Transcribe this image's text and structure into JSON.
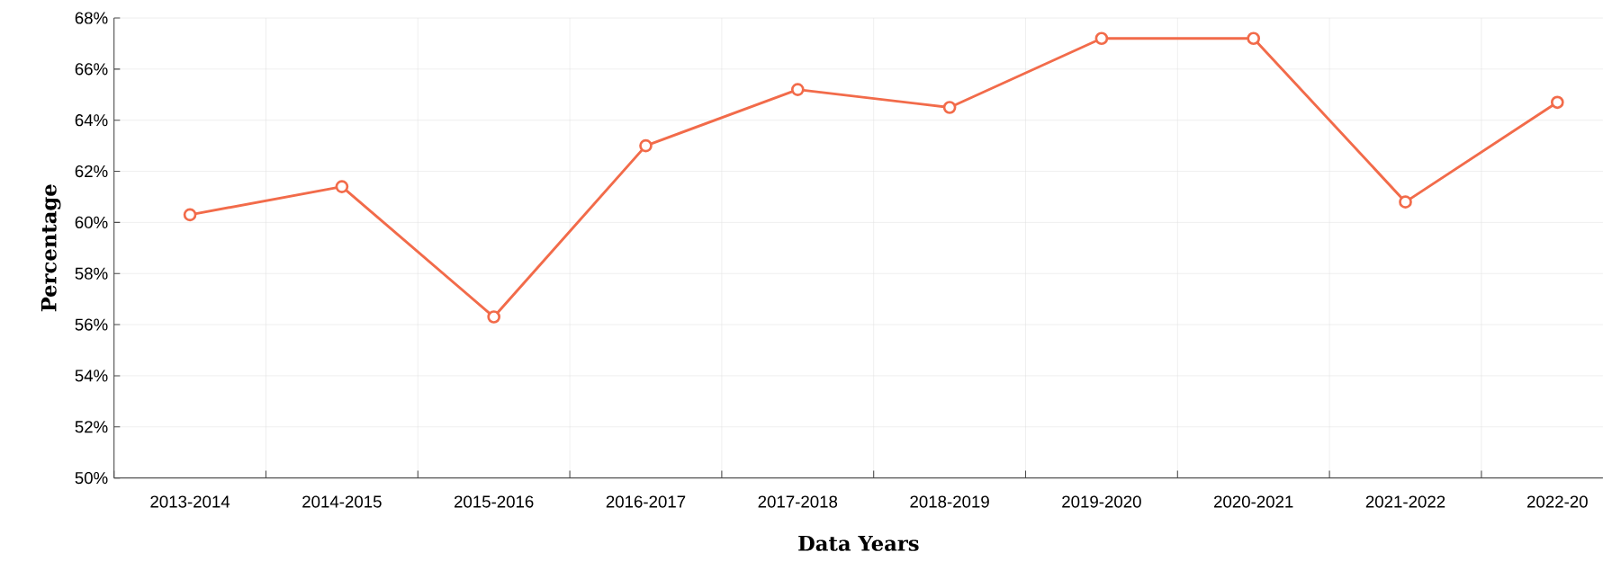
{
  "chart_data": {
    "type": "line",
    "xlabel": "Data Years",
    "ylabel": "Percentage",
    "categories": [
      "2013-2014",
      "2014-2015",
      "2015-2016",
      "2016-2017",
      "2017-2018",
      "2018-2019",
      "2019-2020",
      "2020-2021",
      "2021-2022",
      "2022-20"
    ],
    "series": [
      {
        "color": "#f26b4a",
        "values": [
          60.3,
          61.4,
          56.3,
          63.0,
          65.2,
          64.5,
          67.2,
          67.2,
          60.8,
          64.7
        ]
      }
    ],
    "ylim": [
      50,
      68
    ],
    "yticks": [
      {
        "value": 50,
        "label": "50%"
      },
      {
        "value": 52,
        "label": "52%"
      },
      {
        "value": 54,
        "label": "54%"
      },
      {
        "value": 56,
        "label": "56%"
      },
      {
        "value": 58,
        "label": "58%"
      },
      {
        "value": 60,
        "label": "60%"
      },
      {
        "value": 62,
        "label": "62%"
      },
      {
        "value": 64,
        "label": "64%"
      },
      {
        "value": 66,
        "label": "66%"
      },
      {
        "value": 68,
        "label": "68%"
      }
    ],
    "grid": true,
    "marker": "circle",
    "line_style": "solid"
  }
}
